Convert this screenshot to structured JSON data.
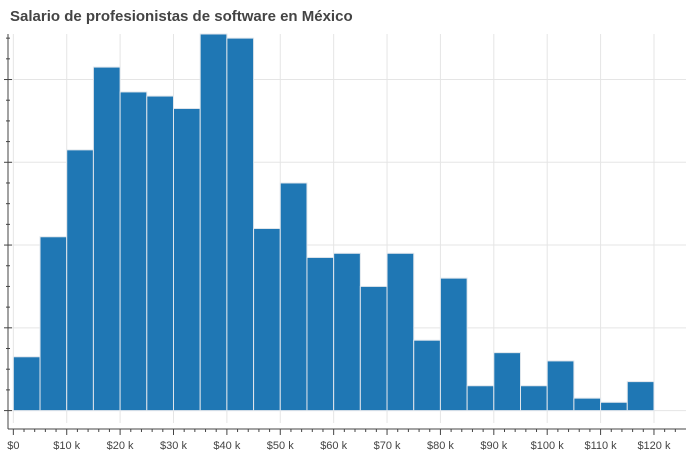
{
  "chart_data": {
    "type": "bar",
    "title": "Salario de profesionistas de software en México",
    "xlabel": "",
    "ylabel": "",
    "x_ticks": [
      0,
      10000,
      20000,
      30000,
      40000,
      50000,
      60000,
      70000,
      80000,
      90000,
      100000,
      110000,
      120000
    ],
    "x_tick_labels": [
      "$0",
      "$10 k",
      "$20 k",
      "$30 k",
      "$40 k",
      "$50 k",
      "$60 k",
      "$70 k",
      "$80 k",
      "$90 k",
      "$100 k",
      "$110 k",
      "$120 k"
    ],
    "xlim": [
      -1000,
      126000
    ],
    "ylim": [
      -0.3,
      9.1
    ],
    "bin_width": 5000,
    "bins": [
      {
        "start": 0,
        "end": 5000,
        "value": 1.3
      },
      {
        "start": 5000,
        "end": 10000,
        "value": 4.2
      },
      {
        "start": 10000,
        "end": 15000,
        "value": 6.3
      },
      {
        "start": 15000,
        "end": 20000,
        "value": 8.3
      },
      {
        "start": 20000,
        "end": 25000,
        "value": 7.7
      },
      {
        "start": 25000,
        "end": 30000,
        "value": 7.6
      },
      {
        "start": 30000,
        "end": 35000,
        "value": 7.3
      },
      {
        "start": 35000,
        "end": 40000,
        "value": 9.1
      },
      {
        "start": 40000,
        "end": 45000,
        "value": 9.0
      },
      {
        "start": 45000,
        "end": 50000,
        "value": 4.4
      },
      {
        "start": 50000,
        "end": 55000,
        "value": 5.5
      },
      {
        "start": 55000,
        "end": 60000,
        "value": 3.7
      },
      {
        "start": 60000,
        "end": 65000,
        "value": 3.8
      },
      {
        "start": 65000,
        "end": 70000,
        "value": 3.0
      },
      {
        "start": 70000,
        "end": 75000,
        "value": 3.8
      },
      {
        "start": 75000,
        "end": 80000,
        "value": 1.7
      },
      {
        "start": 80000,
        "end": 85000,
        "value": 3.2
      },
      {
        "start": 85000,
        "end": 90000,
        "value": 0.6
      },
      {
        "start": 90000,
        "end": 95000,
        "value": 1.4
      },
      {
        "start": 95000,
        "end": 100000,
        "value": 0.6
      },
      {
        "start": 100000,
        "end": 105000,
        "value": 1.2
      },
      {
        "start": 105000,
        "end": 110000,
        "value": 0.3
      },
      {
        "start": 110000,
        "end": 115000,
        "value": 0.2
      },
      {
        "start": 115000,
        "end": 120000,
        "value": 0.7
      }
    ],
    "bar_color": "#1f77b4",
    "bar_edge_color": "#e0e6ec",
    "grid": true,
    "grid_color": "#e5e5e5",
    "axis_color": "#444444"
  }
}
